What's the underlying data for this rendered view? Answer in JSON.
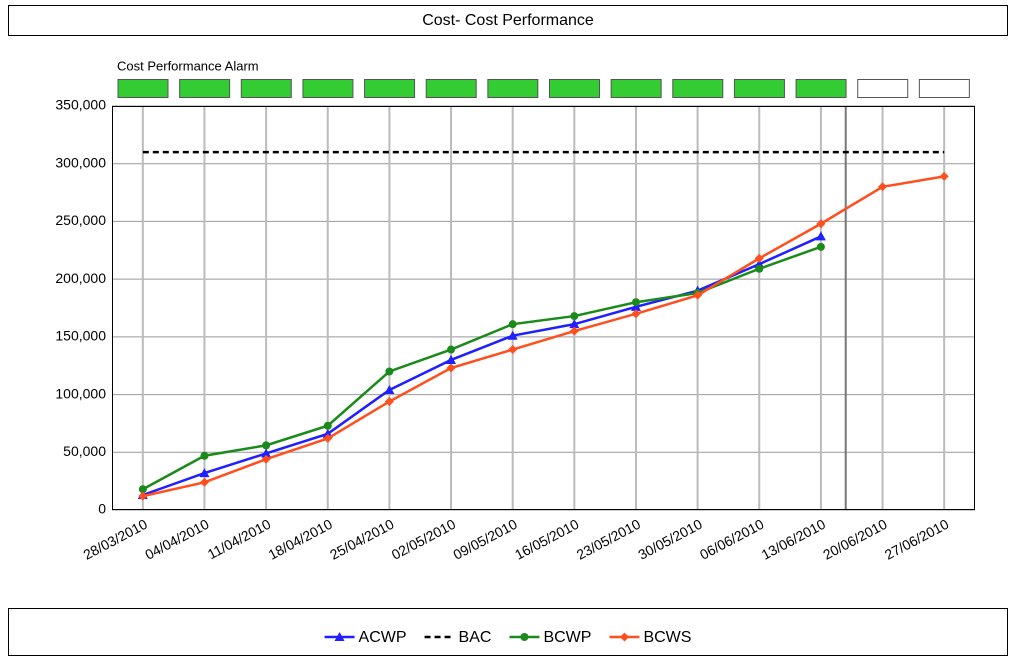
{
  "chart_data": {
    "type": "line",
    "title": "Cost- Cost Performance",
    "alarm": {
      "label": "Cost Performance Alarm",
      "colors": [
        "#33cc33",
        "#33cc33",
        "#33cc33",
        "#33cc33",
        "#33cc33",
        "#33cc33",
        "#33cc33",
        "#33cc33",
        "#33cc33",
        "#33cc33",
        "#33cc33",
        "#33cc33",
        "#ffffff",
        "#ffffff"
      ]
    },
    "categories": [
      "28/03/2010",
      "04/04/2010",
      "11/04/2010",
      "18/04/2010",
      "25/04/2010",
      "02/05/2010",
      "09/05/2010",
      "16/05/2010",
      "23/05/2010",
      "30/05/2010",
      "06/06/2010",
      "13/06/2010",
      "20/06/2010",
      "27/06/2010"
    ],
    "series": [
      {
        "name": "ACWP",
        "color": "#1f1fff",
        "marker": "triangle",
        "values": [
          13000,
          32000,
          49000,
          66000,
          104000,
          130000,
          151000,
          161000,
          176000,
          190000,
          213000,
          237000,
          null,
          null
        ]
      },
      {
        "name": "BAC",
        "color": "#000000",
        "marker": "none",
        "dash": true,
        "values": [
          310000,
          310000,
          310000,
          310000,
          310000,
          310000,
          310000,
          310000,
          310000,
          310000,
          310000,
          310000,
          310000,
          310000
        ]
      },
      {
        "name": "BCWP",
        "color": "#1a8a1a",
        "marker": "circle",
        "values": [
          18000,
          47000,
          56000,
          73000,
          120000,
          139000,
          161000,
          168000,
          180000,
          188000,
          209000,
          228000,
          null,
          null
        ]
      },
      {
        "name": "BCWS",
        "color": "#ff4f1f",
        "marker": "diamond",
        "values": [
          12000,
          24000,
          44000,
          62000,
          94000,
          123000,
          139000,
          155000,
          170000,
          186000,
          218000,
          248000,
          280000,
          289000
        ]
      }
    ],
    "ylim": [
      0,
      350000
    ],
    "yticks": [
      0,
      {
        "value": 50000,
        "label": "50,000"
      },
      {
        "value": 100000,
        "label": "100,000"
      },
      {
        "value": 150000,
        "label": "150,000"
      },
      {
        "value": 200000,
        "label": "200,000"
      },
      {
        "value": 250000,
        "label": "250,000"
      },
      {
        "value": 300000,
        "label": "300,000"
      },
      {
        "value": 350000,
        "label": "350,000"
      }
    ],
    "grid": true
  }
}
